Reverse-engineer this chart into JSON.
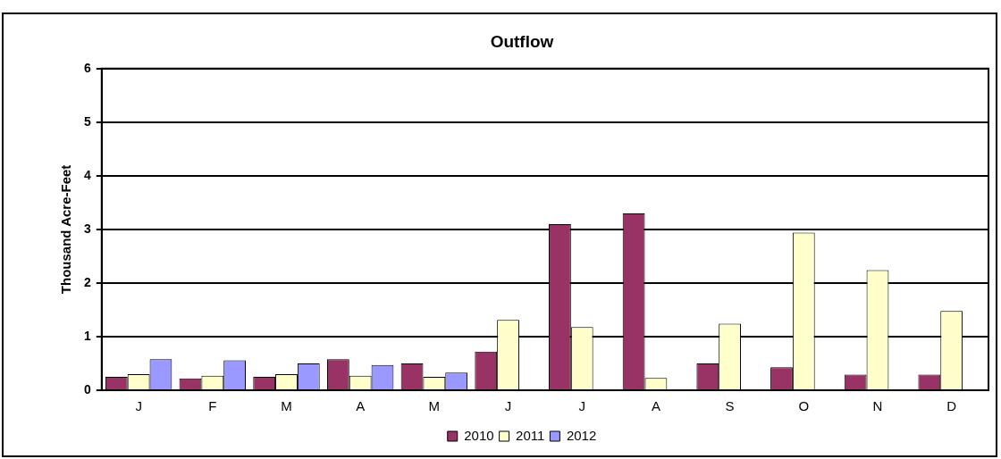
{
  "chart_data": {
    "type": "bar",
    "title": "Outflow",
    "ylabel": "Thousand Acre-Feet",
    "categories": [
      "J",
      "F",
      "M",
      "A",
      "M",
      "J",
      "J",
      "A",
      "S",
      "O",
      "N",
      "D"
    ],
    "series": [
      {
        "name": "2010",
        "color": "#993366",
        "values": [
          0.25,
          0.22,
          0.25,
          0.58,
          0.5,
          0.72,
          3.1,
          3.3,
          0.5,
          0.43,
          0.29,
          0.29
        ]
      },
      {
        "name": "2011",
        "color": "#ffffcc",
        "values": [
          0.3,
          0.27,
          0.3,
          0.27,
          0.25,
          1.31,
          1.18,
          0.23,
          1.24,
          2.94,
          2.24,
          1.48
        ]
      },
      {
        "name": "2012",
        "color": "#9999ff",
        "values": [
          0.58,
          0.56,
          0.5,
          0.47,
          0.33,
          0,
          0,
          0,
          0,
          0,
          0,
          0
        ]
      }
    ],
    "ylim": [
      0,
      6
    ],
    "yticks": [
      0,
      1,
      2,
      3,
      4,
      5,
      6
    ],
    "grid": "y",
    "legend": "bottom"
  }
}
